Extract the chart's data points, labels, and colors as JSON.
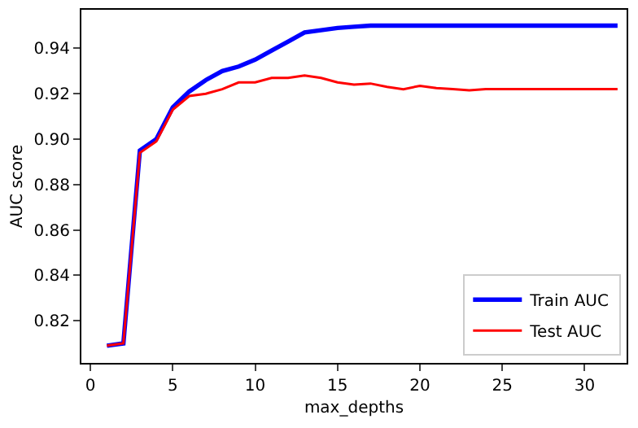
{
  "chart_data": {
    "type": "line",
    "xlabel": "max_depths",
    "ylabel": "AUC score",
    "x": [
      1,
      2,
      3,
      4,
      5,
      6,
      7,
      8,
      9,
      10,
      11,
      12,
      13,
      14,
      15,
      16,
      17,
      18,
      19,
      20,
      21,
      22,
      23,
      24,
      25,
      26,
      27,
      28,
      29,
      30,
      31,
      32
    ],
    "series": [
      {
        "name": "Train AUC",
        "color": "#0000ff",
        "values": [
          0.809,
          0.81,
          0.895,
          0.9,
          0.914,
          0.921,
          0.926,
          0.93,
          0.932,
          0.935,
          0.939,
          0.943,
          0.947,
          0.948,
          0.949,
          0.9495,
          0.95,
          0.95,
          0.95,
          0.95,
          0.95,
          0.95,
          0.95,
          0.95,
          0.95,
          0.95,
          0.95,
          0.95,
          0.95,
          0.95,
          0.95,
          0.95
        ]
      },
      {
        "name": "Test AUC",
        "color": "#ff0000",
        "values": [
          0.809,
          0.81,
          0.894,
          0.899,
          0.913,
          0.919,
          0.92,
          0.922,
          0.925,
          0.925,
          0.927,
          0.927,
          0.928,
          0.927,
          0.925,
          0.924,
          0.9245,
          0.923,
          0.922,
          0.9235,
          0.9225,
          0.922,
          0.9215,
          0.922,
          0.922,
          0.922,
          0.922,
          0.922,
          0.922,
          0.922,
          0.922,
          0.922
        ]
      }
    ],
    "xlim": [
      -0.55,
      32.55
    ],
    "xticks": [
      0,
      5,
      10,
      15,
      20,
      25,
      30
    ],
    "ylim": [
      0.8014,
      0.957
    ],
    "yticks": [
      0.82,
      0.84,
      0.86,
      0.88,
      {
        "value": 0.9,
        "label": "0.90"
      },
      0.92,
      0.94
    ],
    "legend": "bottom right",
    "marker": "none",
    "line_style": "solid"
  }
}
